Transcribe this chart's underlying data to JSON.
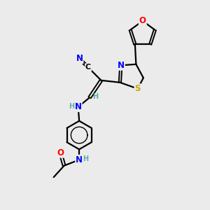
{
  "background_color": "#ebebeb",
  "atom_colors": {
    "C": "#000000",
    "N": "#0000ff",
    "O": "#ff0000",
    "S": "#ccaa00",
    "H": "#5faaaa",
    "bond": "#000000"
  },
  "figsize": [
    3.0,
    3.0
  ],
  "dpi": 100
}
